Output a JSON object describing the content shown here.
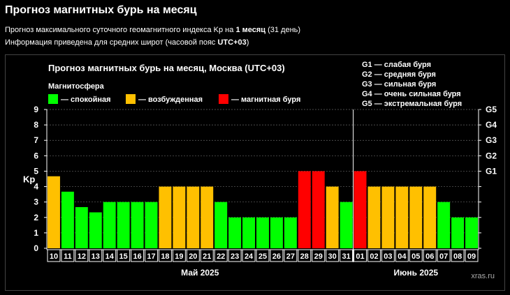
{
  "header": {
    "title": "Прогноз магнитных бурь на месяц",
    "line1_pre": "Прогноз максимального суточного геомагнитного индекса Kp на ",
    "line1_bold": "1 месяц",
    "line1_post": " (31 день)",
    "line2_pre": "Информация приведена для средних широт (часовой пояс ",
    "line2_bold": "UTC+03",
    "line2_post": ")"
  },
  "chart_data": {
    "type": "bar",
    "title": "Прогноз магнитных бурь на месяц, Москва (UTC+03)",
    "legend_title": "Магнитосфера",
    "legend": [
      {
        "label": "— спокойная",
        "color": "#00ff00"
      },
      {
        "label": "— возбужденная",
        "color": "#ffc000"
      },
      {
        "label": "— магнитная буря",
        "color": "#ff0000"
      }
    ],
    "g_scale_legend": [
      {
        "code": "G1",
        "text": "— слабая буря"
      },
      {
        "code": "G2",
        "text": "— средняя буря"
      },
      {
        "code": "G3",
        "text": "— сильная буря"
      },
      {
        "code": "G4",
        "text": "— очень сильная буря"
      },
      {
        "code": "G5",
        "text": "— экстремальная буря"
      }
    ],
    "ylabel": "Kp",
    "ylim": [
      0,
      9
    ],
    "yticks": [
      "0",
      "1",
      "2",
      "3",
      "4",
      "5",
      "6",
      "7",
      "8",
      "9"
    ],
    "right_ticks": [
      {
        "label": "G1",
        "value": 5
      },
      {
        "label": "G2",
        "value": 6
      },
      {
        "label": "G3",
        "value": 7
      },
      {
        "label": "G4",
        "value": 8
      },
      {
        "label": "G5",
        "value": 9
      }
    ],
    "months": [
      {
        "label": "Май 2025",
        "first": 0,
        "last": 21
      },
      {
        "label": "Июнь 2025",
        "first": 22,
        "last": 30
      }
    ],
    "categories": [
      "10",
      "11",
      "12",
      "13",
      "14",
      "15",
      "16",
      "17",
      "18",
      "19",
      "20",
      "21",
      "22",
      "23",
      "24",
      "25",
      "26",
      "27",
      "28",
      "29",
      "30",
      "31",
      "01",
      "02",
      "03",
      "04",
      "05",
      "06",
      "07",
      "08",
      "09"
    ],
    "values": [
      4.67,
      3.67,
      2.67,
      2.33,
      3,
      3,
      3,
      3,
      4,
      4,
      4,
      4,
      3,
      2,
      2,
      2,
      2,
      2,
      5,
      5,
      4,
      3,
      5,
      4,
      4,
      4,
      4,
      4,
      3,
      2,
      2
    ],
    "colors": {
      "calm": "#00ff00",
      "active": "#ffc000",
      "storm": "#ff0000"
    },
    "watermark": "xras.ru",
    "grid": true
  }
}
